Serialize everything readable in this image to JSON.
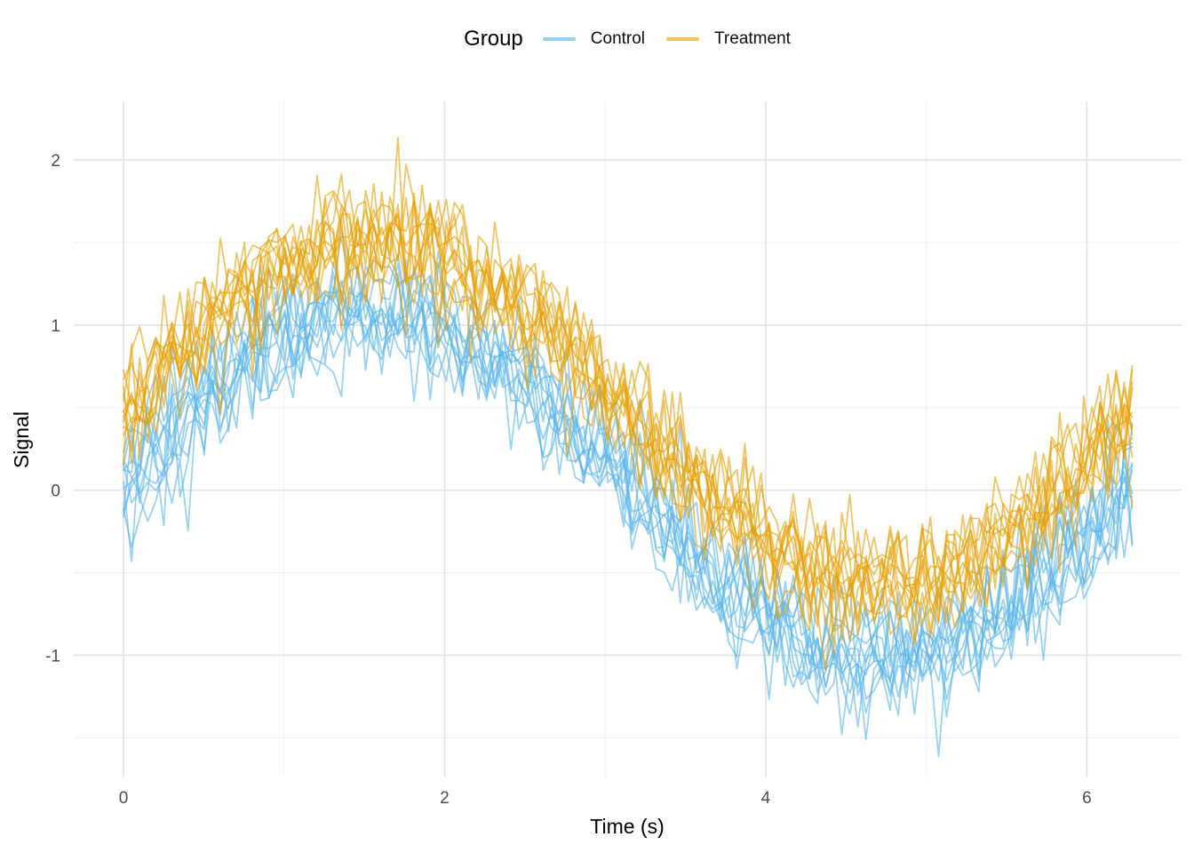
{
  "legend": {
    "title": "Group",
    "position": "top"
  },
  "chart_data": {
    "type": "line",
    "title": "",
    "xlabel": "Time (s)",
    "ylabel": "Signal",
    "x_axis": {
      "data_range": [
        0,
        6.283
      ],
      "panel_domain": [
        -0.31,
        6.59
      ],
      "major_ticks": [
        0,
        2,
        4,
        6
      ],
      "minor_ticks": [
        1,
        3,
        5
      ]
    },
    "y_axis": {
      "data_range": [
        -1.55,
        2.15
      ],
      "panel_domain": [
        -1.74,
        2.355
      ],
      "major_ticks": [
        2,
        1,
        0,
        -1
      ],
      "minor_ticks": [
        1.5,
        0.5,
        -0.5,
        -1.5
      ]
    },
    "grid": {
      "major_color": "#e3e3e3",
      "minor_color": "#f0f0f0",
      "background": "#ffffff"
    },
    "legend_position": "top",
    "series_model": "value = amplitude * sin(t) + group_offset + series_offset + gaussian_noise",
    "line_opacity": 0.6,
    "line_width": 1.8,
    "groups": [
      {
        "name": "Control",
        "color": "#56B4E9",
        "n_series": 12,
        "n_points": 126,
        "amplitude": 1.05,
        "offset": 0.0,
        "noise_sd": 0.18,
        "series_offset_sd": 0.07,
        "seed": 42
      },
      {
        "name": "Treatment",
        "color": "#E69F00",
        "n_series": 12,
        "n_points": 126,
        "amplitude": 1.05,
        "offset": 0.5,
        "noise_sd": 0.18,
        "series_offset_sd": 0.07,
        "seed": 1007
      }
    ]
  }
}
